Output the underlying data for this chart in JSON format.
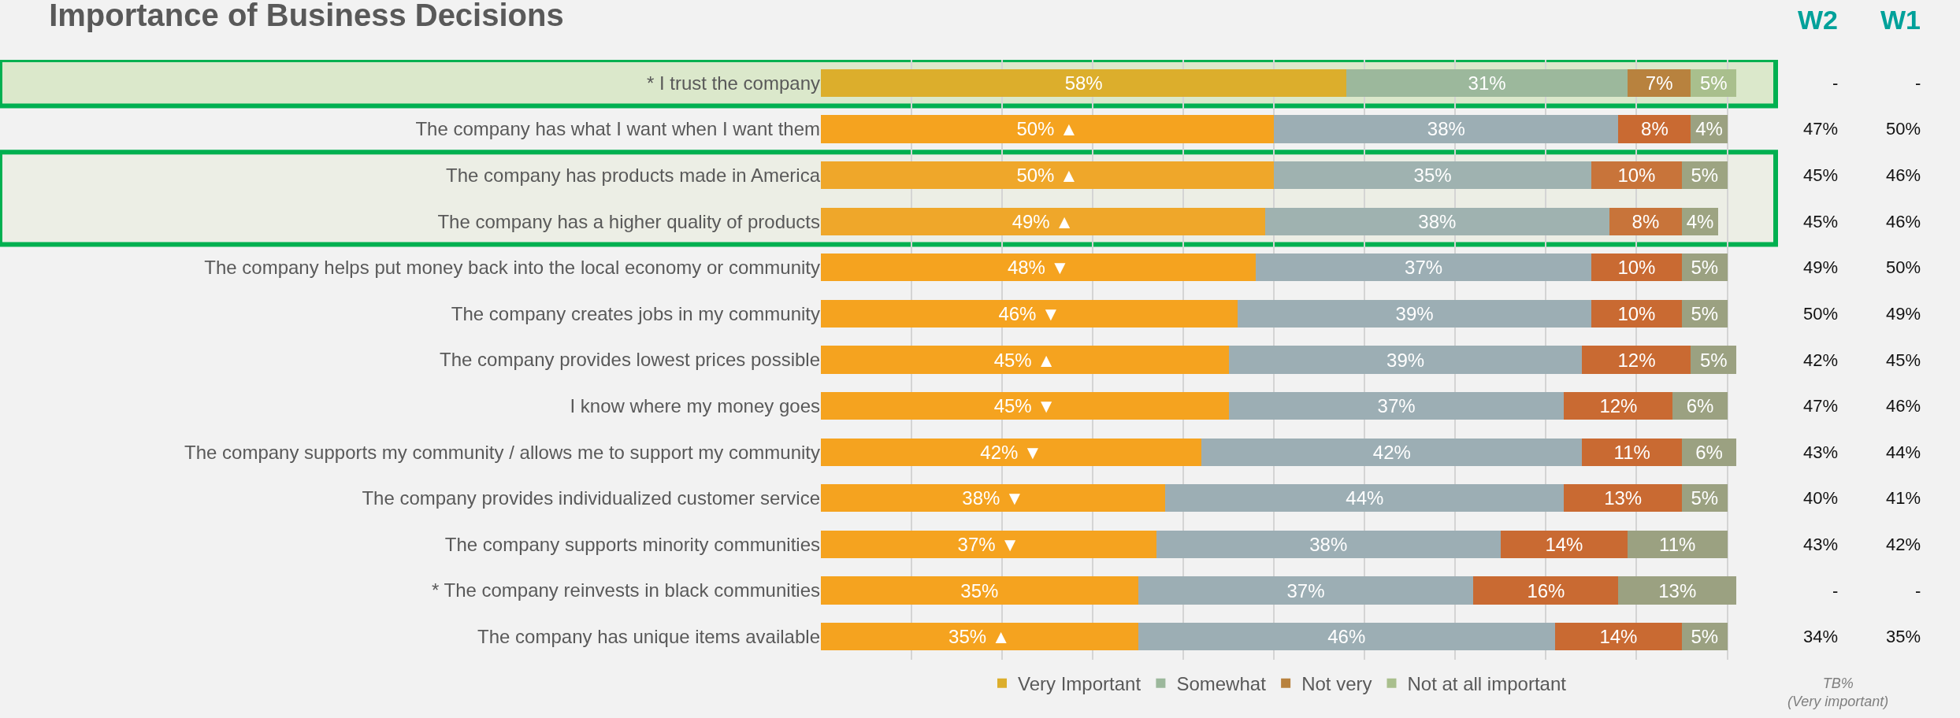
{
  "chart_data": {
    "type": "bar",
    "orientation": "horizontal",
    "stacked": true,
    "title": "Importance of Business Decisions",
    "categories": [
      "* I trust the company",
      "The company has what I want when I want them",
      "The company has products made in America",
      "The company has a higher quality of products",
      "The company helps put money back into the local economy or community",
      "The company creates jobs in my community",
      "The company provides lowest prices possible",
      "I know where my money goes",
      "The company supports my community / allows me to support my community",
      "The company provides individualized customer service",
      "The company supports minority communities",
      "* The company reinvests in black communities",
      "The company has unique items available"
    ],
    "series": [
      {
        "name": "Very Important",
        "color": "#f5a31f",
        "colors": [
          "#dcae2c",
          null,
          "#efa72a",
          "#efa72a",
          null,
          null,
          null,
          null,
          null,
          null,
          null,
          null,
          null
        ],
        "values": [
          58,
          50,
          50,
          49,
          48,
          46,
          45,
          45,
          42,
          38,
          37,
          35,
          35
        ],
        "value_labels": [
          "58%",
          "50% ▲",
          "50% ▲",
          "49% ▲",
          "48% ▼",
          "46% ▼",
          "45% ▲",
          "45% ▼",
          "42% ▼",
          "38% ▼",
          "37% ▼",
          "35%",
          "35% ▲"
        ]
      },
      {
        "name": "Somewhat",
        "color": "#9caeb4",
        "colors": [
          "#9cb89c",
          null,
          "#9fb2b0",
          "#9fb2b0",
          null,
          null,
          null,
          null,
          null,
          null,
          null,
          null,
          null
        ],
        "values": [
          31,
          38,
          35,
          38,
          37,
          39,
          39,
          37,
          42,
          44,
          38,
          37,
          46
        ],
        "value_labels": [
          "31%",
          "38%",
          "35%",
          "38%",
          "37%",
          "39%",
          "39%",
          "37%",
          "42%",
          "44%",
          "38%",
          "37%",
          "46%"
        ]
      },
      {
        "name": "Not very",
        "color": "#c96a32",
        "colors": [
          "#b8823e",
          null,
          "#c8743a",
          "#c8743a",
          null,
          null,
          null,
          null,
          null,
          null,
          null,
          null,
          null
        ],
        "values": [
          7,
          8,
          10,
          8,
          10,
          10,
          12,
          12,
          11,
          13,
          14,
          16,
          14
        ],
        "value_labels": [
          "7%",
          "8%",
          "10%",
          "8%",
          "10%",
          "10%",
          "12%",
          "12%",
          "11%",
          "13%",
          "14%",
          "16%",
          "14%"
        ]
      },
      {
        "name": "Not at all important",
        "color": "#9ba181",
        "colors": [
          "#a9bf8d",
          null,
          "#9da482",
          "#9da482",
          null,
          null,
          null,
          null,
          null,
          null,
          null,
          null,
          null
        ],
        "values": [
          5,
          4,
          5,
          4,
          5,
          5,
          5,
          6,
          6,
          5,
          11,
          13,
          5
        ],
        "value_labels": [
          "5%",
          "4%",
          "5%",
          "4%",
          "5%",
          "5%",
          "5%",
          "6%",
          "6%",
          "5%",
          "11%",
          "13%",
          "5%"
        ]
      }
    ],
    "xlim": [
      0,
      101
    ],
    "grid": "x",
    "tick_labels": "y",
    "legend": "bottom",
    "bands": [
      {
        "axis": "y",
        "from": "* I trust the company",
        "to": "* I trust the company",
        "color": "#dbe8cb"
      },
      {
        "axis": "y",
        "from": "The company has products made in America",
        "to": "The company has a higher quality of products",
        "color": "#eceee5"
      }
    ],
    "annotations": [
      "W2",
      "W1",
      "-",
      "-",
      "47%",
      "50%",
      "45%",
      "46%",
      "45%",
      "46%",
      "49%",
      "50%",
      "50%",
      "49%",
      "42%",
      "45%",
      "47%",
      "46%",
      "43%",
      "44%",
      "40%",
      "41%",
      "43%",
      "42%",
      "-",
      "-",
      "34%",
      "35%",
      "TB%\n(Very important)"
    ]
  }
}
